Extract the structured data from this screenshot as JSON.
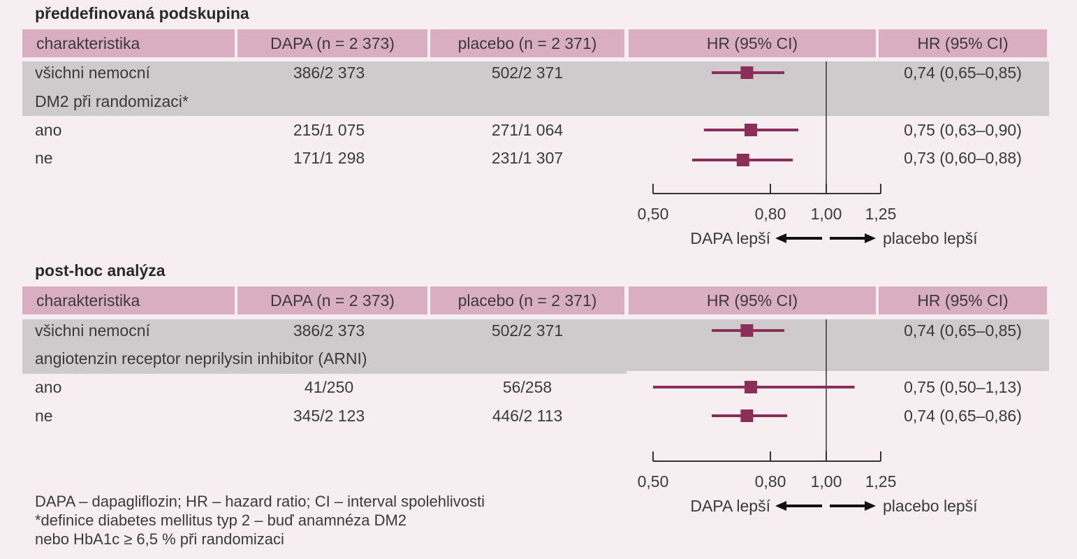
{
  "columns": {
    "characteristic": "charakteristika",
    "dapa": "DAPA (n = 2 373)",
    "placebo": "placebo (n = 2 371)",
    "hr_plot": "HR (95% CI)",
    "hr_text": "HR (95% CI)"
  },
  "axis": {
    "ticks": [
      0.5,
      0.8,
      1.0,
      1.25
    ],
    "tick_labels": [
      "0,50",
      "0,80",
      "1,00",
      "1,25"
    ],
    "left_label": "DAPA lepší",
    "right_label": "placebo lepší",
    "reference": 1.0
  },
  "colors": {
    "header": "#d9aec0",
    "band": "#cfcacc",
    "marker": "#8b2e5a",
    "background": "#f6eef1"
  },
  "chart_data": [
    {
      "type": "forest",
      "title": "předdefinovaná podskupina",
      "rows": [
        {
          "label": "všichni nemocní",
          "dapa": "386/2 373",
          "placebo": "502/2 371",
          "hr": 0.74,
          "lo": 0.65,
          "hi": 0.85,
          "hr_text": "0,74 (0,65–0,85)"
        },
        {
          "label": "DM2 při randomizaci*",
          "group": true
        },
        {
          "label": "ano",
          "dapa": "215/1 075",
          "placebo": "271/1 064",
          "hr": 0.75,
          "lo": 0.63,
          "hi": 0.9,
          "hr_text": "0,75 (0,63–0,90)"
        },
        {
          "label": "ne",
          "dapa": "171/1 298",
          "placebo": "231/1 307",
          "hr": 0.73,
          "lo": 0.6,
          "hi": 0.88,
          "hr_text": "0,73 (0,60–0,88)"
        }
      ]
    },
    {
      "type": "forest",
      "title": "post-hoc analýza",
      "rows": [
        {
          "label": "všichni nemocní",
          "dapa": "386/2 373",
          "placebo": "502/2 371",
          "hr": 0.74,
          "lo": 0.65,
          "hi": 0.85,
          "hr_text": "0,74 (0,65–0,85)"
        },
        {
          "label": "angiotenzin receptor neprilysin inhibitor (ARNI)",
          "group": true
        },
        {
          "label": "ano",
          "dapa": "41/250",
          "placebo": "56/258",
          "hr": 0.75,
          "lo": 0.5,
          "hi": 1.13,
          "hr_text": "0,75 (0,50–1,13)"
        },
        {
          "label": "ne",
          "dapa": "345/2 123",
          "placebo": "446/2 113",
          "hr": 0.74,
          "lo": 0.65,
          "hi": 0.86,
          "hr_text": "0,74 (0,65–0,86)"
        }
      ]
    }
  ],
  "footnote": [
    "DAPA – dapagliflozin; HR – hazard ratio; CI – interval spolehlivosti",
    "*definice diabetes mellitus typ 2 – buď anamnéza DM2",
    "nebo HbA1c ≥ 6,5 % při randomizaci"
  ]
}
